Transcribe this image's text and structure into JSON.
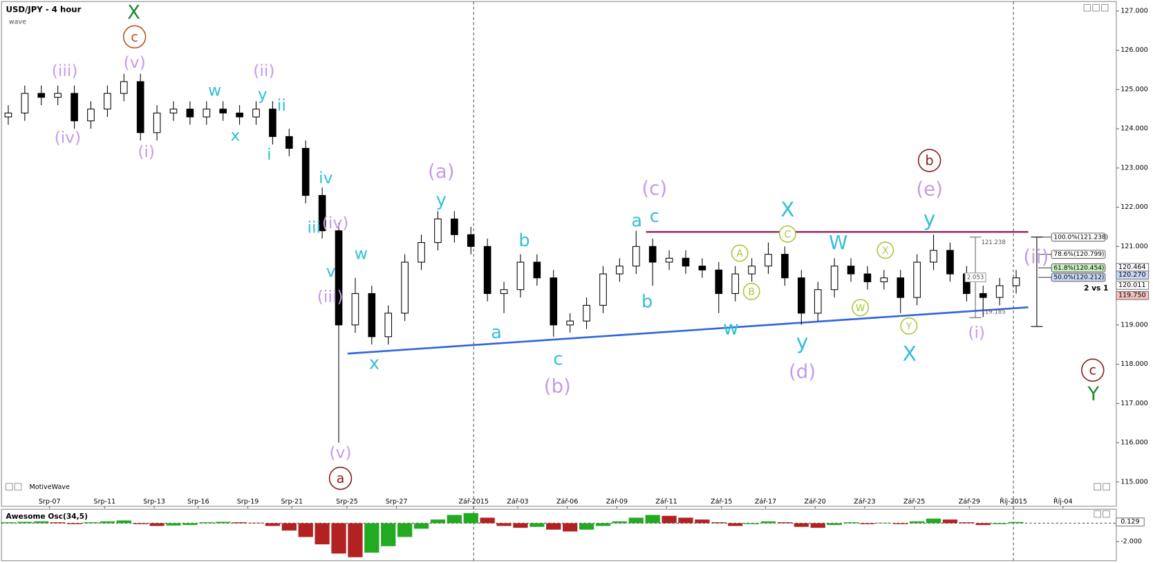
{
  "chart_data": {
    "type": "candlestick",
    "title": "USD/JPY - 4 hour",
    "subtitle": "wave",
    "watermark": "MotiveWave",
    "x": [
      1.5,
      4.5,
      7.5,
      10.5,
      13.5,
      16.5,
      19.5,
      22.5,
      25.5,
      28.5,
      31.5,
      34.5,
      37.5,
      40.5,
      43.5,
      46.5,
      49.5,
      52.5,
      55.5,
      58.5,
      61.5,
      64.5,
      67.5,
      70.5,
      73.5,
      76.5,
      79.5,
      82.5,
      85.5,
      88.5,
      91.5,
      94.5,
      97.5,
      100.5,
      103.5,
      106.5,
      109.5,
      112.5,
      115.5,
      118.5,
      121.5,
      124.5,
      127.5,
      130.5,
      133.5,
      136.5,
      139.5,
      142.5,
      145.5,
      148.5,
      151.5,
      154.5,
      157.5,
      160.5,
      163.5,
      166.5,
      169.5,
      172.5,
      175.5,
      178.5,
      181.5,
      184.5
    ],
    "open": [
      124.3,
      124.4,
      124.9,
      124.8,
      124.9,
      124.2,
      124.5,
      124.9,
      125.2,
      123.9,
      124.4,
      124.5,
      124.3,
      124.5,
      124.4,
      124.3,
      124.5,
      123.8,
      123.5,
      122.3,
      121.4,
      119.0,
      119.8,
      118.7,
      119.3,
      120.6,
      121.1,
      121.7,
      121.3,
      121.0,
      119.8,
      119.9,
      120.6,
      120.2,
      119.0,
      119.1,
      119.5,
      120.3,
      120.5,
      121.0,
      120.6,
      120.7,
      120.5,
      120.4,
      119.8,
      120.3,
      120.5,
      120.8,
      120.2,
      119.3,
      119.9,
      120.5,
      120.3,
      120.1,
      120.2,
      119.7,
      120.6,
      120.9,
      120.3,
      119.8,
      119.7,
      120.0
    ],
    "high": [
      124.6,
      125.1,
      125.1,
      125.1,
      125.1,
      124.7,
      125.1,
      125.4,
      125.4,
      124.6,
      124.7,
      124.7,
      124.7,
      124.7,
      124.6,
      124.7,
      124.7,
      124.0,
      123.7,
      122.5,
      121.6,
      120.2,
      120.0,
      119.5,
      120.8,
      121.3,
      121.9,
      121.9,
      121.5,
      121.2,
      120.1,
      120.8,
      120.8,
      120.4,
      119.3,
      119.7,
      120.5,
      120.7,
      121.4,
      121.2,
      120.9,
      120.9,
      120.7,
      120.6,
      120.5,
      120.7,
      121.1,
      121.0,
      120.4,
      120.1,
      120.7,
      120.7,
      120.5,
      120.4,
      120.4,
      120.8,
      121.3,
      121.1,
      120.5,
      120.0,
      120.2,
      120.4
    ],
    "low": [
      124.1,
      124.2,
      124.6,
      124.6,
      124.0,
      124.0,
      124.3,
      124.7,
      123.7,
      123.7,
      124.2,
      124.1,
      124.1,
      124.2,
      124.1,
      124.1,
      123.6,
      123.3,
      122.1,
      121.2,
      116.0,
      118.8,
      118.5,
      118.5,
      119.1,
      120.4,
      120.9,
      121.1,
      120.8,
      119.6,
      119.3,
      119.7,
      120.0,
      118.7,
      118.8,
      118.9,
      119.3,
      120.1,
      120.3,
      120.0,
      120.4,
      120.3,
      120.2,
      119.3,
      119.6,
      120.1,
      120.3,
      120.0,
      119.0,
      119.1,
      119.7,
      120.1,
      119.9,
      119.9,
      119.3,
      119.5,
      120.4,
      120.1,
      119.6,
      119.2,
      119.5,
      119.8
    ],
    "close": [
      124.4,
      124.9,
      124.8,
      124.9,
      124.2,
      124.5,
      124.9,
      125.2,
      123.9,
      124.4,
      124.5,
      124.3,
      124.5,
      124.4,
      124.3,
      124.5,
      123.8,
      123.5,
      122.3,
      121.4,
      119.0,
      119.8,
      118.7,
      119.3,
      120.6,
      121.1,
      121.7,
      121.3,
      121.0,
      119.8,
      119.9,
      120.6,
      120.2,
      119.0,
      119.1,
      119.5,
      120.3,
      120.5,
      121.0,
      120.6,
      120.7,
      120.5,
      120.4,
      119.8,
      120.3,
      120.5,
      120.8,
      120.2,
      119.3,
      119.9,
      120.5,
      120.3,
      120.1,
      120.2,
      119.7,
      120.6,
      120.9,
      120.3,
      119.8,
      119.7,
      120.0,
      120.2
    ],
    "up_color": "#ffffff",
    "down_color": "#000000",
    "xlim": [
      0,
      202
    ],
    "xticks": [
      {
        "value": 9,
        "label": "Srp-07"
      },
      {
        "value": 19,
        "label": "Srp-11"
      },
      {
        "value": 28,
        "label": "Srp-13"
      },
      {
        "value": 36,
        "label": "Srp-16"
      },
      {
        "value": 45,
        "label": "Srp-19"
      },
      {
        "value": 53,
        "label": "Srp-21"
      },
      {
        "value": 63,
        "label": "Srp-25"
      },
      {
        "value": 72,
        "label": "Srp-27"
      },
      {
        "value": 86,
        "label": "Zář-2015"
      },
      {
        "value": 94,
        "label": "Zář-03"
      },
      {
        "value": 103,
        "label": "Zář-06"
      },
      {
        "value": 112,
        "label": "Zář-09"
      },
      {
        "value": 121,
        "label": "Zář-11"
      },
      {
        "value": 131,
        "label": "Zář-15"
      },
      {
        "value": 139,
        "label": "Zář-17"
      },
      {
        "value": 148,
        "label": "Zář-20"
      },
      {
        "value": 157,
        "label": "Zář-23"
      },
      {
        "value": 166,
        "label": "Zář-25"
      },
      {
        "value": 176,
        "label": "Zář-29"
      },
      {
        "value": 184,
        "label": "Říj-2015"
      },
      {
        "value": 193,
        "label": "Říj-04"
      }
    ],
    "separators": [
      86,
      184
    ],
    "ylim": [
      114.38,
      127.24
    ],
    "yticks": [
      {
        "value": 115,
        "label": "115.000"
      },
      {
        "value": 116,
        "label": "116.000"
      },
      {
        "value": 117,
        "label": "117.000"
      },
      {
        "value": 118,
        "label": "118.000"
      },
      {
        "value": 119,
        "label": "119.000"
      },
      {
        "value": 120,
        "label": "120.000"
      },
      {
        "value": 121,
        "label": "121.000"
      },
      {
        "value": 122,
        "label": "122.000"
      },
      {
        "value": 123,
        "label": "123.000"
      },
      {
        "value": 124,
        "label": "124.000"
      },
      {
        "value": 125,
        "label": "125.000"
      },
      {
        "value": 126,
        "label": "126.000"
      },
      {
        "value": 127,
        "label": "127.000"
      }
    ],
    "trendlines": [
      {
        "color": "#3366dd",
        "x": [
          63.1,
          186.7
        ],
        "y": [
          118.27,
          119.45
        ]
      },
      {
        "color": "#993366",
        "x": [
          117.3,
          186.7
        ],
        "y": [
          121.37,
          121.37
        ]
      }
    ],
    "fib_levels": [
      {
        "value": 121.238,
        "label": "100.0%(121.238)",
        "color": "#ffffff"
      },
      {
        "value": 120.799,
        "label": "78.6%(120.799)",
        "color": "#ffffff"
      },
      {
        "value": 120.454,
        "label": "61.8%(120.454)",
        "color": "#c8f0c0"
      },
      {
        "value": 120.212,
        "label": "50.0%(120.212)",
        "color": "#c8d8f8"
      }
    ],
    "price_tags": [
      {
        "value": 120.464,
        "label": "120.464",
        "color": "#ffffff"
      },
      {
        "value": 120.27,
        "label": "120.270",
        "color": "#c8d8f8"
      },
      {
        "value": 120.011,
        "label": "120.011",
        "color": "#ffffff"
      },
      {
        "value": 119.75,
        "label": "119.750",
        "color": "#f4c0c0"
      }
    ],
    "measure": {
      "high": {
        "value": 121.238,
        "label": "121.238"
      },
      "low": {
        "value": 119.185,
        "label": "119.185"
      },
      "range": 2.053,
      "x": 177.1
    },
    "ratio_label": "2 vs 1",
    "annotations": [
      {
        "text": "X",
        "color": "#1b8a2e"
      },
      {
        "text": "c",
        "color": "#b5501c",
        "circled": true
      },
      {
        "text": "(v)",
        "color": "#c59be8"
      },
      {
        "text": "(iii)",
        "color": "#c59be8"
      },
      {
        "text": "(ii)",
        "color": "#c59be8"
      },
      {
        "text": "w",
        "color": "#33bfd6"
      },
      {
        "text": "y",
        "color": "#33bfd6"
      },
      {
        "text": "ii",
        "color": "#33bfd6"
      },
      {
        "text": "(iv)",
        "color": "#c59be8"
      },
      {
        "text": "(i)",
        "color": "#c59be8"
      },
      {
        "text": "x",
        "color": "#33bfd6"
      },
      {
        "text": "i",
        "color": "#33bfd6"
      },
      {
        "text": "iv",
        "color": "#33bfd6"
      },
      {
        "text": "(a)",
        "color": "#c59be8"
      },
      {
        "text": "iii",
        "color": "#33bfd6"
      },
      {
        "text": "(iv)",
        "color": "#c59be8"
      },
      {
        "text": "v",
        "color": "#33bfd6"
      },
      {
        "text": "(iii)",
        "color": "#c59be8"
      },
      {
        "text": "w",
        "color": "#33bfd6"
      },
      {
        "text": "y",
        "color": "#33bfd6"
      },
      {
        "text": "x",
        "color": "#33bfd6"
      },
      {
        "text": "(v)",
        "color": "#c59be8"
      },
      {
        "text": "a",
        "color": "#8b1a1a",
        "circled": true
      },
      {
        "text": "a",
        "color": "#33bfd6"
      },
      {
        "text": "c",
        "color": "#33bfd6"
      },
      {
        "text": "(c)",
        "color": "#c59be8"
      },
      {
        "text": "b",
        "color": "#33bfd6"
      },
      {
        "text": "b",
        "color": "#33bfd6"
      },
      {
        "text": "a",
        "color": "#33bfd6"
      },
      {
        "text": "c",
        "color": "#33bfd6"
      },
      {
        "text": "(b)",
        "color": "#c59be8"
      },
      {
        "text": "X",
        "color": "#33bfd6"
      },
      {
        "text": "C",
        "color": "#a8c83c",
        "circled": true
      },
      {
        "text": "A",
        "color": "#a8c83c",
        "circled": true
      },
      {
        "text": "B",
        "color": "#a8c83c",
        "circled": true
      },
      {
        "text": "W",
        "color": "#33bfd6"
      },
      {
        "text": "X",
        "color": "#a8c83c",
        "circled": true
      },
      {
        "text": "W",
        "color": "#a8c83c",
        "circled": true
      },
      {
        "text": "Y",
        "color": "#a8c83c",
        "circled": true
      },
      {
        "text": "w",
        "color": "#33bfd6"
      },
      {
        "text": "y",
        "color": "#33bfd6"
      },
      {
        "text": "(d)",
        "color": "#c59be8"
      },
      {
        "text": "X",
        "color": "#33bfd6"
      },
      {
        "text": "b",
        "color": "#8b1a1a",
        "circled": true
      },
      {
        "text": "(e)",
        "color": "#c59be8"
      },
      {
        "text": "y",
        "color": "#33bfd6"
      },
      {
        "text": "(ii)",
        "color": "#c59be8"
      },
      {
        "text": "(i)",
        "color": "#c59be8"
      },
      {
        "text": "c",
        "color": "#8b1a1a",
        "circled": true
      },
      {
        "text": "Y",
        "color": "#1b8a2e"
      }
    ],
    "oscillator": {
      "title": "Awesome Osc(34,5)",
      "values": [
        0.1,
        0.15,
        0.2,
        0.1,
        -0.1,
        0.1,
        0.2,
        0.3,
        -0.1,
        -0.3,
        -0.25,
        -0.2,
        0.1,
        0.15,
        0.1,
        0.05,
        -0.3,
        -0.8,
        -1.5,
        -2.3,
        -3.3,
        -3.7,
        -3.2,
        -2.5,
        -1.5,
        -0.6,
        0.4,
        0.9,
        1.1,
        0.6,
        -0.3,
        -0.5,
        -0.4,
        -0.7,
        -0.9,
        -0.7,
        -0.3,
        0.2,
        0.6,
        0.9,
        0.8,
        0.6,
        0.4,
        0.1,
        -0.3,
        -0.1,
        0.2,
        0.1,
        -0.4,
        -0.5,
        -0.2,
        0.1,
        -0.1,
        0.05,
        -0.1,
        0.2,
        0.5,
        0.4,
        0.1,
        -0.2,
        -0.1,
        0.13
      ],
      "ylim": [
        -4.08,
        1.44
      ],
      "yticks": [
        {
          "value": -2,
          "label": "-2.000"
        }
      ],
      "tag": {
        "value": 0.129,
        "label": "0.129"
      },
      "up_color": "#22aa22",
      "down_color": "#b22222"
    }
  }
}
